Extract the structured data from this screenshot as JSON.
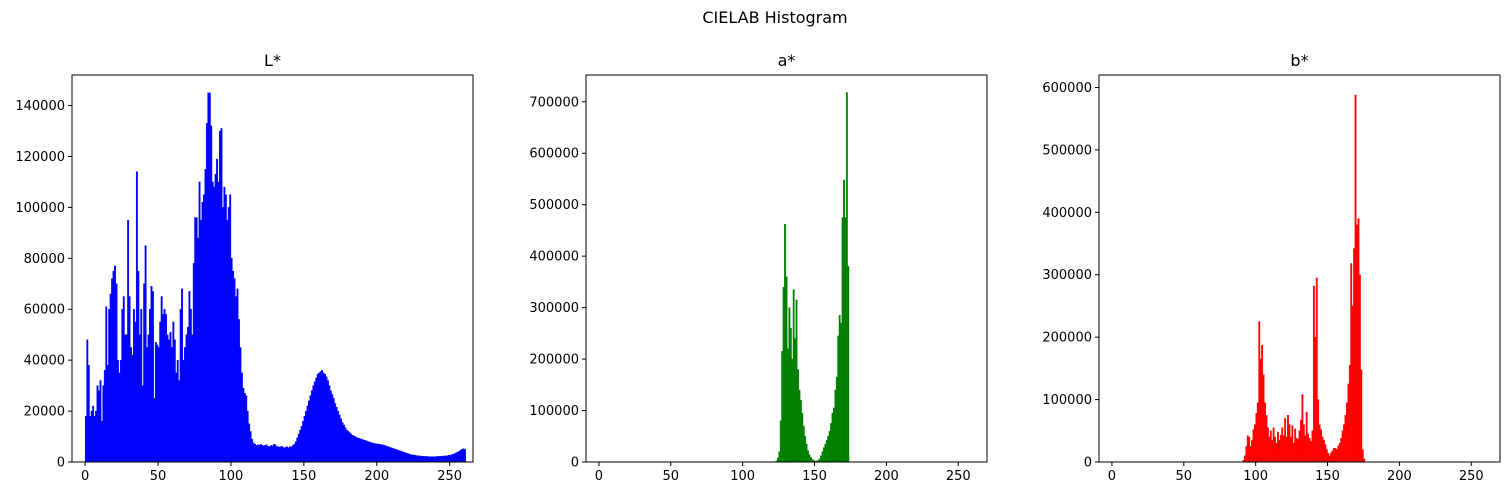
{
  "figure": {
    "title": "CIELAB Histogram"
  },
  "chart_data": [
    {
      "type": "bar",
      "title": "L*",
      "color": "#0000ff",
      "xlim": [
        -9,
        266
      ],
      "ylim": [
        0,
        152000
      ],
      "xticks": [
        0,
        50,
        100,
        150,
        200,
        250
      ],
      "yticks": [
        0,
        20000,
        40000,
        60000,
        80000,
        100000,
        120000,
        140000
      ],
      "x_start": 0,
      "values": [
        18000,
        48000,
        38000,
        18000,
        20000,
        22000,
        18000,
        20000,
        30000,
        28000,
        32000,
        16000,
        30000,
        36000,
        61000,
        38000,
        60000,
        66000,
        72000,
        75000,
        77000,
        70000,
        40000,
        35000,
        40000,
        60000,
        65000,
        50000,
        50000,
        95000,
        65000,
        45000,
        42000,
        60000,
        55000,
        114000,
        75000,
        50000,
        60000,
        30000,
        70000,
        85000,
        45000,
        50000,
        60000,
        69000,
        67000,
        25000,
        47000,
        46000,
        45000,
        55000,
        65000,
        58000,
        60000,
        58000,
        50000,
        48000,
        51000,
        45000,
        55000,
        48000,
        35000,
        40000,
        32000,
        60000,
        68000,
        40000,
        45000,
        50000,
        53000,
        67000,
        60000,
        50000,
        78000,
        96000,
        96000,
        88000,
        110000,
        95000,
        102000,
        105000,
        115000,
        133000,
        145000,
        145000,
        132000,
        110000,
        108000,
        113000,
        119000,
        110000,
        130000,
        131000,
        100000,
        108000,
        105000,
        95000,
        100000,
        105000,
        80000,
        75000,
        72000,
        65000,
        68000,
        56000,
        45000,
        35000,
        29000,
        27000,
        26000,
        20000,
        15000,
        12000,
        9000,
        7500,
        7000,
        6500,
        6800,
        6600,
        7000,
        6500,
        6400,
        6600,
        6800,
        6200,
        6000,
        6500,
        6400,
        7000,
        6800,
        6100,
        6000,
        5800,
        6200,
        6000,
        5500,
        5800,
        6000,
        5600,
        6000,
        6000,
        6500,
        7000,
        8000,
        9500,
        11000,
        12500,
        14000,
        16000,
        18000,
        20000,
        22000,
        24000,
        26000,
        28000,
        30000,
        31500,
        33000,
        34500,
        35000,
        35500,
        36000,
        35000,
        34500,
        33500,
        32000,
        30000,
        28000,
        26500,
        25000,
        23000,
        21500,
        20000,
        18500,
        17000,
        15500,
        14500,
        13500,
        12500,
        12000,
        11500,
        11000,
        10500,
        10200,
        9900,
        9600,
        9400,
        9200,
        9000,
        8800,
        8600,
        8400,
        8200,
        8000,
        7800,
        7600,
        7400,
        7300,
        7200,
        7100,
        7000,
        6900,
        6800,
        6700,
        6500,
        6300,
        6100,
        5900,
        5700,
        5500,
        5300,
        5100,
        4900,
        4700,
        4500,
        4300,
        4100,
        3900,
        3700,
        3500,
        3300,
        3100,
        2900,
        2800,
        2700,
        2600,
        2500,
        2400,
        2400,
        2300,
        2300,
        2200,
        2200,
        2200,
        2100,
        2100,
        2100,
        2100,
        2100,
        2100,
        2200,
        2200,
        2200,
        2300,
        2300,
        2400,
        2400,
        2500,
        2600,
        2700,
        2900,
        3100,
        3300,
        3600,
        3900,
        4200,
        4600,
        5000,
        5200,
        5000
      ]
    },
    {
      "type": "bar",
      "title": "a*",
      "color": "#008000",
      "xlim": [
        -9,
        270
      ],
      "ylim": [
        0,
        752000
      ],
      "xticks": [
        0,
        50,
        100,
        150,
        200,
        250
      ],
      "yticks": [
        0,
        100000,
        200000,
        300000,
        400000,
        500000,
        600000,
        700000
      ],
      "x_start": 123,
      "values": [
        2000,
        8000,
        20000,
        80000,
        215000,
        340000,
        462000,
        360000,
        220000,
        300000,
        260000,
        200000,
        335000,
        240000,
        315000,
        180000,
        140000,
        120000,
        95000,
        70000,
        50000,
        35000,
        22000,
        14000,
        9000,
        5000,
        3000,
        2000,
        2000,
        3000,
        6000,
        12000,
        20000,
        28000,
        35000,
        42000,
        50000,
        60000,
        75000,
        95000,
        105000,
        140000,
        165000,
        245000,
        285000,
        270000,
        475000,
        548000,
        475000,
        718000,
        380000
      ]
    },
    {
      "type": "bar",
      "title": "b*",
      "color": "#ff0000",
      "xlim": [
        -9,
        270
      ],
      "ylim": [
        0,
        620000
      ],
      "xticks": [
        0,
        50,
        100,
        150,
        200,
        250
      ],
      "yticks": [
        0,
        100000,
        200000,
        300000,
        400000,
        500000,
        600000
      ],
      "x_start": 91,
      "values": [
        3000,
        10000,
        25000,
        42000,
        40000,
        25000,
        35000,
        52000,
        60000,
        78000,
        95000,
        225000,
        165000,
        187000,
        140000,
        95000,
        75000,
        55000,
        40000,
        50000,
        35000,
        55000,
        40000,
        30000,
        48000,
        35000,
        43000,
        55000,
        42000,
        70000,
        40000,
        75000,
        60000,
        40000,
        58000,
        30000,
        53000,
        38000,
        37000,
        50000,
        67000,
        108000,
        60000,
        42000,
        80000,
        45000,
        38000,
        33000,
        50000,
        282000,
        200000,
        295000,
        100000,
        60000,
        52000,
        40000,
        35000,
        28000,
        20000,
        14000,
        10000,
        15000,
        18000,
        22000,
        22000,
        20000,
        26000,
        30000,
        38000,
        50000,
        60000,
        75000,
        95000,
        125000,
        155000,
        318000,
        250000,
        342000,
        588000,
        380000,
        390000,
        300000,
        148000,
        20000,
        5000
      ]
    }
  ]
}
